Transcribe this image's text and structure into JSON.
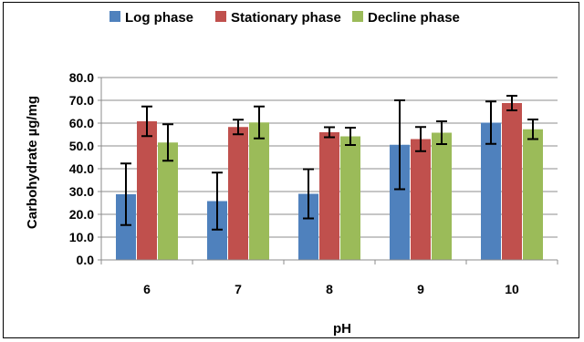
{
  "chart_data": {
    "type": "bar",
    "title": "",
    "xlabel": "pH",
    "ylabel": "Carbohydrate µg/mg",
    "categories": [
      "6",
      "7",
      "8",
      "9",
      "10"
    ],
    "ylim": [
      0,
      80
    ],
    "y_ticks": [
      "0.0",
      "10.0",
      "20.0",
      "30.0",
      "40.0",
      "50.0",
      "60.0",
      "70.0",
      "80.0"
    ],
    "grid": true,
    "legend_position": "top",
    "series": [
      {
        "name": "Log  phase",
        "color": "#4F81BD",
        "values": [
          28.8,
          25.8,
          29.0,
          50.5,
          60.2
        ],
        "error": [
          13.5,
          12.5,
          10.8,
          19.5,
          9.3
        ]
      },
      {
        "name": "Stationary phase",
        "color": "#C0504D",
        "values": [
          60.8,
          58.3,
          56.0,
          53.0,
          68.8
        ],
        "error": [
          6.5,
          3.2,
          2.2,
          5.3,
          3.2
        ]
      },
      {
        "name": "Decline phase",
        "color": "#9BBB59",
        "values": [
          51.5,
          60.3,
          54.2,
          55.8,
          57.3
        ],
        "error": [
          8.0,
          7.0,
          3.8,
          5.0,
          4.3
        ]
      }
    ]
  }
}
